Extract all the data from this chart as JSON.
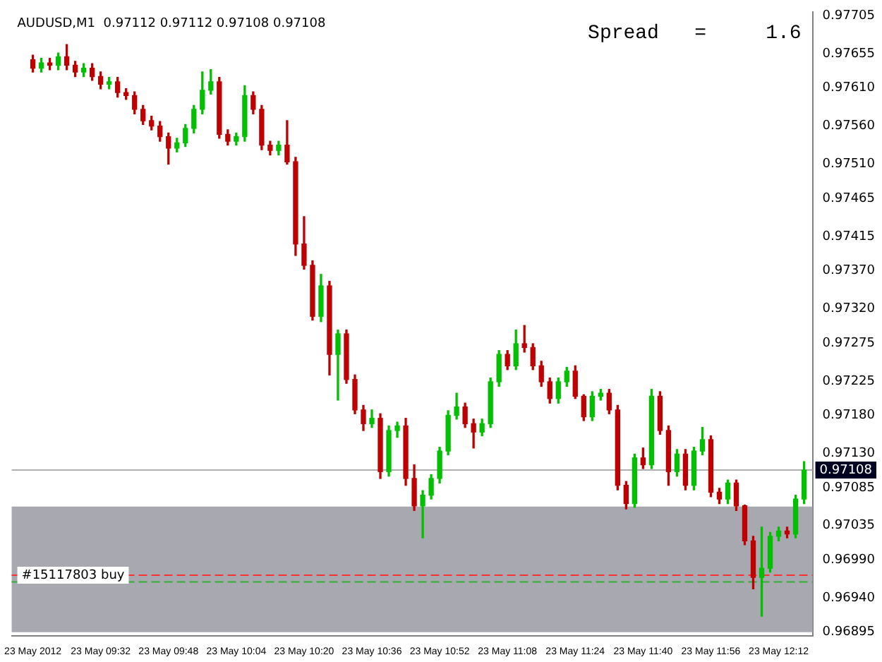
{
  "chart_data": {
    "type": "candlestick",
    "title": "AUDUSD,M1  0.97112 0.97112 0.97108 0.97108",
    "annotations": [
      "Spread   =     1.6"
    ],
    "x": [
      "2012-05-23T09:16",
      "2012-05-23T09:18",
      "2012-05-23T09:20",
      "2012-05-23T09:22",
      "2012-05-23T09:24",
      "2012-05-23T09:26",
      "2012-05-23T09:28",
      "2012-05-23T09:30",
      "2012-05-23T09:32",
      "2012-05-23T09:34",
      "2012-05-23T09:36",
      "2012-05-23T09:38",
      "2012-05-23T09:40",
      "2012-05-23T09:42",
      "2012-05-23T09:44",
      "2012-05-23T09:46",
      "2012-05-23T09:48",
      "2012-05-23T09:50",
      "2012-05-23T09:52",
      "2012-05-23T09:54",
      "2012-05-23T09:56",
      "2012-05-23T09:58",
      "2012-05-23T10:00",
      "2012-05-23T10:02",
      "2012-05-23T10:04",
      "2012-05-23T10:06",
      "2012-05-23T10:08",
      "2012-05-23T10:10",
      "2012-05-23T10:12",
      "2012-05-23T10:14",
      "2012-05-23T10:16",
      "2012-05-23T10:18",
      "2012-05-23T10:20",
      "2012-05-23T10:22",
      "2012-05-23T10:24",
      "2012-05-23T10:26",
      "2012-05-23T10:28",
      "2012-05-23T10:30",
      "2012-05-23T10:32",
      "2012-05-23T10:34",
      "2012-05-23T10:36",
      "2012-05-23T10:38",
      "2012-05-23T10:40",
      "2012-05-23T10:42",
      "2012-05-23T10:44",
      "2012-05-23T10:46",
      "2012-05-23T10:48",
      "2012-05-23T10:50",
      "2012-05-23T10:52",
      "2012-05-23T10:54",
      "2012-05-23T10:56",
      "2012-05-23T10:58",
      "2012-05-23T11:00",
      "2012-05-23T11:02",
      "2012-05-23T11:04",
      "2012-05-23T11:06",
      "2012-05-23T11:08",
      "2012-05-23T11:10",
      "2012-05-23T11:12",
      "2012-05-23T11:14",
      "2012-05-23T11:16",
      "2012-05-23T11:18",
      "2012-05-23T11:20",
      "2012-05-23T11:22",
      "2012-05-23T11:24",
      "2012-05-23T11:26",
      "2012-05-23T11:28",
      "2012-05-23T11:30",
      "2012-05-23T11:32",
      "2012-05-23T11:34",
      "2012-05-23T11:36",
      "2012-05-23T11:38",
      "2012-05-23T11:40",
      "2012-05-23T11:42",
      "2012-05-23T11:44",
      "2012-05-23T11:46",
      "2012-05-23T11:48",
      "2012-05-23T11:50",
      "2012-05-23T11:52",
      "2012-05-23T11:54",
      "2012-05-23T11:56",
      "2012-05-23T11:58",
      "2012-05-23T12:00",
      "2012-05-23T12:02",
      "2012-05-23T12:04",
      "2012-05-23T12:06",
      "2012-05-23T12:08",
      "2012-05-23T12:10",
      "2012-05-23T12:12",
      "2012-05-23T12:14",
      "2012-05-23T12:16",
      "2012-05-23T12:18"
    ],
    "ohlc": [
      [
        0.97647,
        0.97653,
        0.97631,
        0.97636
      ],
      [
        0.97636,
        0.97649,
        0.97631,
        0.97643
      ],
      [
        0.97643,
        0.97649,
        0.97634,
        0.9764
      ],
      [
        0.9764,
        0.97656,
        0.97634,
        0.97651
      ],
      [
        0.97651,
        0.97667,
        0.97634,
        0.9764
      ],
      [
        0.9764,
        0.97645,
        0.97625,
        0.97631
      ],
      [
        0.97631,
        0.97642,
        0.97625,
        0.97636
      ],
      [
        0.97636,
        0.97642,
        0.9762,
        0.97625
      ],
      [
        0.97625,
        0.97631,
        0.97609,
        0.97615
      ],
      [
        0.97615,
        0.97624,
        0.97609,
        0.97618
      ],
      [
        0.97618,
        0.97624,
        0.97598,
        0.97604
      ],
      [
        0.97604,
        0.97609,
        0.97595,
        0.976
      ],
      [
        0.976,
        0.97605,
        0.97576,
        0.97582
      ],
      [
        0.97582,
        0.97587,
        0.97562,
        0.97567
      ],
      [
        0.97567,
        0.97573,
        0.97555,
        0.9756
      ],
      [
        0.9756,
        0.97566,
        0.9754,
        0.97546
      ],
      [
        0.97546,
        0.97551,
        0.9751,
        0.97531
      ],
      [
        0.97531,
        0.97544,
        0.97526,
        0.97538
      ],
      [
        0.97538,
        0.97562,
        0.97533,
        0.97557
      ],
      [
        0.97557,
        0.97587,
        0.97551,
        0.97582
      ],
      [
        0.97582,
        0.97631,
        0.97576,
        0.97607
      ],
      [
        0.97607,
        0.97634,
        0.97602,
        0.97618
      ],
      [
        0.97618,
        0.97624,
        0.97544,
        0.97549
      ],
      [
        0.97549,
        0.97555,
        0.97535,
        0.9754
      ],
      [
        0.9754,
        0.97551,
        0.97535,
        0.97546
      ],
      [
        0.97546,
        0.97613,
        0.9754,
        0.976
      ],
      [
        0.976,
        0.97605,
        0.97576,
        0.97582
      ],
      [
        0.97582,
        0.97587,
        0.97529,
        0.97535
      ],
      [
        0.97535,
        0.9754,
        0.97522,
        0.97528
      ],
      [
        0.97528,
        0.9754,
        0.97522,
        0.97535
      ],
      [
        0.97535,
        0.97567,
        0.9751,
        0.97513
      ],
      [
        0.97513,
        0.97519,
        0.9739,
        0.97405
      ],
      [
        0.97405,
        0.97441,
        0.97372,
        0.97377
      ],
      [
        0.97377,
        0.97383,
        0.97305,
        0.9731
      ],
      [
        0.9731,
        0.97365,
        0.97303,
        0.9735
      ],
      [
        0.9735,
        0.97356,
        0.97233,
        0.9726
      ],
      [
        0.9726,
        0.97292,
        0.972,
        0.97287
      ],
      [
        0.97287,
        0.97292,
        0.97222,
        0.97227
      ],
      [
        0.97227,
        0.97233,
        0.97182,
        0.97187
      ],
      [
        0.97187,
        0.97193,
        0.9716,
        0.97169
      ],
      [
        0.97169,
        0.97187,
        0.97164,
        0.97176
      ],
      [
        0.97176,
        0.97182,
        0.97097,
        0.97106
      ],
      [
        0.97106,
        0.97166,
        0.971,
        0.9716
      ],
      [
        0.9716,
        0.97171,
        0.97151,
        0.97166
      ],
      [
        0.97166,
        0.97176,
        0.97088,
        0.97097
      ],
      [
        0.97097,
        0.97115,
        0.97055,
        0.97061
      ],
      [
        0.97061,
        0.97081,
        0.97019,
        0.97075
      ],
      [
        0.97075,
        0.97102,
        0.9707,
        0.97097
      ],
      [
        0.97097,
        0.97138,
        0.97091,
        0.97133
      ],
      [
        0.97133,
        0.97186,
        0.97128,
        0.9718
      ],
      [
        0.9718,
        0.97209,
        0.97175,
        0.97191
      ],
      [
        0.97191,
        0.97196,
        0.97164,
        0.97169
      ],
      [
        0.97169,
        0.97175,
        0.97137,
        0.97158
      ],
      [
        0.97158,
        0.97175,
        0.97153,
        0.97169
      ],
      [
        0.97169,
        0.97229,
        0.97164,
        0.97224
      ],
      [
        0.97224,
        0.97265,
        0.97218,
        0.9726
      ],
      [
        0.9726,
        0.97265,
        0.9724,
        0.97245
      ],
      [
        0.97245,
        0.97292,
        0.9724,
        0.97274
      ],
      [
        0.97274,
        0.97298,
        0.97263,
        0.97269
      ],
      [
        0.97269,
        0.97274,
        0.9724,
        0.97245
      ],
      [
        0.97245,
        0.97251,
        0.97218,
        0.97224
      ],
      [
        0.97224,
        0.97229,
        0.97196,
        0.97202
      ],
      [
        0.97202,
        0.97229,
        0.97196,
        0.97224
      ],
      [
        0.97224,
        0.97243,
        0.97218,
        0.97238
      ],
      [
        0.97238,
        0.97245,
        0.97202,
        0.97205
      ],
      [
        0.97205,
        0.97207,
        0.97173,
        0.97178
      ],
      [
        0.97178,
        0.97211,
        0.97173,
        0.97205
      ],
      [
        0.97205,
        0.97214,
        0.972,
        0.97209
      ],
      [
        0.97209,
        0.97214,
        0.97182,
        0.97187
      ],
      [
        0.97187,
        0.97193,
        0.97082,
        0.97088
      ],
      [
        0.97088,
        0.97093,
        0.97057,
        0.97064
      ],
      [
        0.97064,
        0.97129,
        0.97059,
        0.97124
      ],
      [
        0.97124,
        0.97137,
        0.9711,
        0.97115
      ],
      [
        0.97115,
        0.97214,
        0.9711,
        0.97205
      ],
      [
        0.97205,
        0.97211,
        0.97155,
        0.9716
      ],
      [
        0.9716,
        0.97166,
        0.97088,
        0.97106
      ],
      [
        0.97106,
        0.97135,
        0.971,
        0.97129
      ],
      [
        0.97129,
        0.97135,
        0.97082,
        0.97088
      ],
      [
        0.97088,
        0.97138,
        0.97082,
        0.97133
      ],
      [
        0.97133,
        0.97164,
        0.97128,
        0.97148
      ],
      [
        0.97148,
        0.97153,
        0.97073,
        0.97079
      ],
      [
        0.97079,
        0.97084,
        0.97064,
        0.9707
      ],
      [
        0.9707,
        0.97095,
        0.97064,
        0.97091
      ],
      [
        0.97091,
        0.97095,
        0.97055,
        0.97061
      ],
      [
        0.97061,
        0.97062,
        0.9701,
        0.97015
      ],
      [
        0.97015,
        0.97021,
        0.96952,
        0.96967
      ],
      [
        0.96967,
        0.97033,
        0.96916,
        0.96979
      ],
      [
        0.96979,
        0.97026,
        0.96974,
        0.97021
      ],
      [
        0.97021,
        0.97033,
        0.97015,
        0.97028
      ],
      [
        0.97028,
        0.97033,
        0.97019,
        0.97024
      ],
      [
        0.97024,
        0.97075,
        0.97019,
        0.9707
      ],
      [
        0.9707,
        0.97119,
        0.97064,
        0.97108
      ]
    ],
    "colors": [
      "#c00000",
      "#00c000",
      "#c00000",
      "#00c000",
      "#c00000",
      "#c00000",
      "#00c000",
      "#c00000",
      "#c00000",
      "#00c000",
      "#c00000",
      "#c00000",
      "#c00000",
      "#c00000",
      "#c00000",
      "#c00000",
      "#c00000",
      "#00c000",
      "#00c000",
      "#00c000",
      "#00c000",
      "#00c000",
      "#c00000",
      "#c00000",
      "#00c000",
      "#00c000",
      "#c00000",
      "#c00000",
      "#c00000",
      "#00c000",
      "#c00000",
      "#c00000",
      "#c00000",
      "#c00000",
      "#00c000",
      "#c00000",
      "#00c000",
      "#c00000",
      "#c00000",
      "#c00000",
      "#00c000",
      "#c00000",
      "#00c000",
      "#00c000",
      "#c00000",
      "#c00000",
      "#00c000",
      "#00c000",
      "#00c000",
      "#00c000",
      "#00c000",
      "#c00000",
      "#c00000",
      "#00c000",
      "#00c000",
      "#00c000",
      "#c00000",
      "#00c000",
      "#c00000",
      "#c00000",
      "#c00000",
      "#c00000",
      "#00c000",
      "#00c000",
      "#c00000",
      "#c00000",
      "#00c000",
      "#00c000",
      "#c00000",
      "#c00000",
      "#c00000",
      "#00c000",
      "#c00000",
      "#00c000",
      "#c00000",
      "#c00000",
      "#00c000",
      "#c00000",
      "#00c000",
      "#00c000",
      "#c00000",
      "#c00000",
      "#00c000",
      "#c00000",
      "#c00000",
      "#c00000",
      "#00c000",
      "#00c000",
      "#00c000",
      "#c00000",
      "#00c000",
      "#00c000"
    ],
    "xlim": [
      "2012-05-23T09:11",
      "2012-05-23T12:20"
    ],
    "xticks": [
      {
        "value": "2012-05-23T09:16",
        "label": "23 May 2012"
      },
      {
        "value": "2012-05-23T09:32",
        "label": "23 May 09:32"
      },
      {
        "value": "2012-05-23T09:48",
        "label": "23 May 09:48"
      },
      {
        "value": "2012-05-23T10:04",
        "label": "23 May 10:04"
      },
      {
        "value": "2012-05-23T10:20",
        "label": "23 May 10:20"
      },
      {
        "value": "2012-05-23T10:36",
        "label": "23 May 10:36"
      },
      {
        "value": "2012-05-23T10:52",
        "label": "23 May 10:52"
      },
      {
        "value": "2012-05-23T11:08",
        "label": "23 May 11:08"
      },
      {
        "value": "2012-05-23T11:24",
        "label": "23 May 11:24"
      },
      {
        "value": "2012-05-23T11:40",
        "label": "23 May 11:40"
      },
      {
        "value": "2012-05-23T11:56",
        "label": "23 May 11:56"
      },
      {
        "value": "2012-05-23T12:12",
        "label": "23 May 12:12"
      }
    ],
    "ylim": [
      0.9689,
      0.9771
    ],
    "yticks": [
      0.97705,
      0.97655,
      {
        "value": 0.9761,
        "label": "0.97610"
      },
      {
        "value": 0.9756,
        "label": "0.97560"
      },
      {
        "value": 0.9751,
        "label": "0.97510"
      },
      0.97465,
      0.97415,
      {
        "value": 0.9737,
        "label": "0.97370"
      },
      {
        "value": 0.9732,
        "label": "0.97320"
      },
      0.97275,
      0.97225,
      {
        "value": 0.9718,
        "label": "0.97180"
      },
      {
        "value": 0.9713,
        "label": "0.97130"
      },
      0.97085,
      0.97035,
      {
        "value": 0.9699,
        "label": "0.96990"
      },
      {
        "value": 0.9694,
        "label": "0.96940"
      },
      0.96895
    ],
    "bands": [
      {
        "axis": "y",
        "from": 0.96895,
        "to": 0.9706,
        "color": "#a8a8b0"
      }
    ],
    "ref_lines": [
      {
        "axis": "y",
        "value": 0.97108,
        "label": "0.97108",
        "color": "#b0b0b0"
      },
      {
        "axis": "y",
        "value": 0.9697,
        "label": "#15117803 buy",
        "color": "#ff3030",
        "line_style": "dashed"
      },
      {
        "axis": "y",
        "value": 0.96961,
        "color": "#30b030",
        "line_style": "dashed"
      }
    ],
    "grid": false,
    "legend": false
  }
}
